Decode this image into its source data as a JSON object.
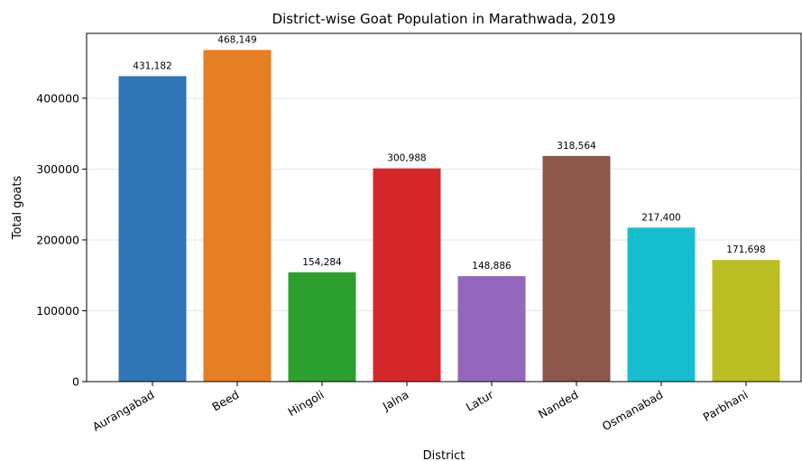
{
  "chart_data": {
    "type": "bar",
    "title": "District-wise Goat Population in Marathwada, 2019",
    "xlabel": "District",
    "ylabel": "Total goats",
    "categories": [
      "Aurangabad",
      "Beed",
      "Hingoli",
      "Jalna",
      "Latur",
      "Nanded",
      "Osmanabad",
      "Parbhani"
    ],
    "values": [
      431182,
      468149,
      154284,
      300988,
      148886,
      318564,
      217400,
      171698
    ],
    "value_labels": [
      "431,182",
      "468,149",
      "154,284",
      "300,988",
      "148,886",
      "318,564",
      "217,400",
      "171,698"
    ],
    "colors": [
      "#2f74b5",
      "#e67e22",
      "#2ca02c",
      "#d62728",
      "#9467bd",
      "#8c564b",
      "#17becf",
      "#bcbd22"
    ],
    "yticks": [
      0,
      100000,
      200000,
      300000,
      400000
    ],
    "ytick_labels": [
      "0",
      "100000",
      "200000",
      "300000",
      "400000"
    ],
    "ylim": [
      0,
      491556
    ],
    "grid": "horizontal",
    "legend": "none"
  }
}
